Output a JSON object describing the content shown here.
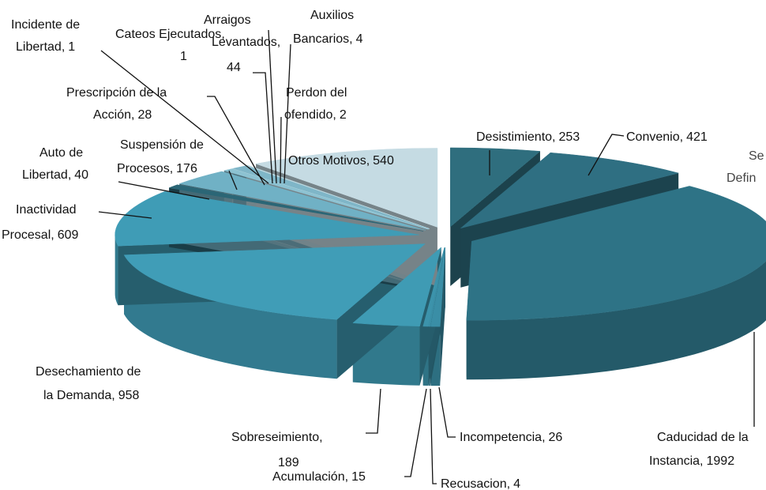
{
  "chart_data": {
    "type": "pie",
    "categories": [
      "Desistimiento",
      "Convenio",
      "Caducidad de la Instancia",
      "Incompetencia",
      "Recusacion",
      "Acumulación",
      "Sobreseimiento",
      "Desechamiento de la Demanda",
      "Inactividad Procesal",
      "Auto de Libertad",
      "Suspensión de Procesos",
      "Prescripción de la Acción",
      "Incidente de Libertad",
      "Cateos Ejecutados",
      "Arraigos Levantados",
      "Perdon del ofendido",
      "Auxilios Bancarios",
      "Otros Motivos"
    ],
    "values": [
      253,
      421,
      1992,
      26,
      4,
      15,
      189,
      958,
      609,
      40,
      176,
      28,
      1,
      1,
      44,
      2,
      4,
      540
    ],
    "colors": [
      "#2f6e7e",
      "#2f6f82",
      "#2e7386",
      "#3a8ea6",
      "#3b8fa7",
      "#3c93ab",
      "#3f9bb4",
      "#409db7",
      "#3f9cb6",
      "#2b6676",
      "#70b1c5",
      "#8cc2d2",
      "#9ccbd8",
      "#a6d0dc",
      "#7fb6c8",
      "#b3d6e0",
      "#bcdbe4",
      "#c5dbe3"
    ],
    "legend_fragment": [
      "Se",
      "Defin"
    ]
  }
}
